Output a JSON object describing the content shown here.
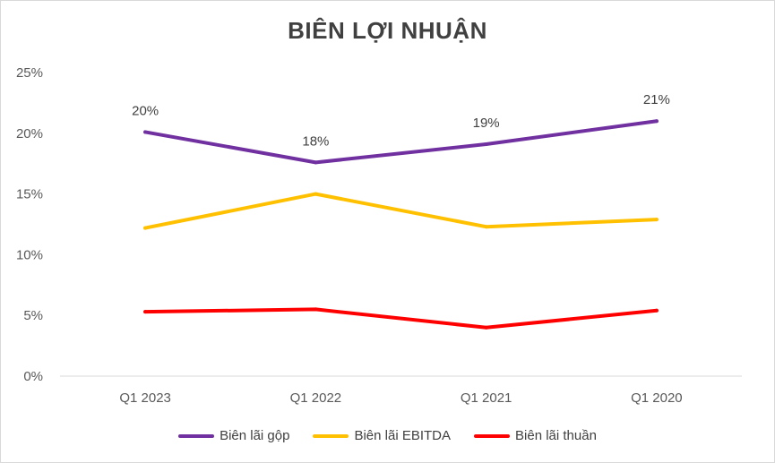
{
  "chart_data": {
    "type": "line",
    "title": "BIÊN LỢI NHUẬN",
    "categories": [
      "Q1 2023",
      "Q1 2022",
      "Q1 2021",
      "Q1 2020"
    ],
    "y_ticks": [
      "0%",
      "5%",
      "10%",
      "15%",
      "20%",
      "25%"
    ],
    "ylim": [
      0,
      25
    ],
    "grid": false,
    "legend_position": "bottom",
    "series": [
      {
        "name": "Biên lãi gộp",
        "color": "#7030a0",
        "values": [
          20.1,
          17.6,
          19.1,
          21.0
        ],
        "labels": [
          "20%",
          "18%",
          "19%",
          "21%"
        ]
      },
      {
        "name": "Biên lãi EBITDA",
        "color": "#ffc000",
        "values": [
          12.2,
          15.0,
          12.3,
          12.9
        ]
      },
      {
        "name": "Biên lãi thuần",
        "color": "#ff0000",
        "values": [
          5.3,
          5.5,
          4.0,
          5.4
        ]
      }
    ]
  }
}
